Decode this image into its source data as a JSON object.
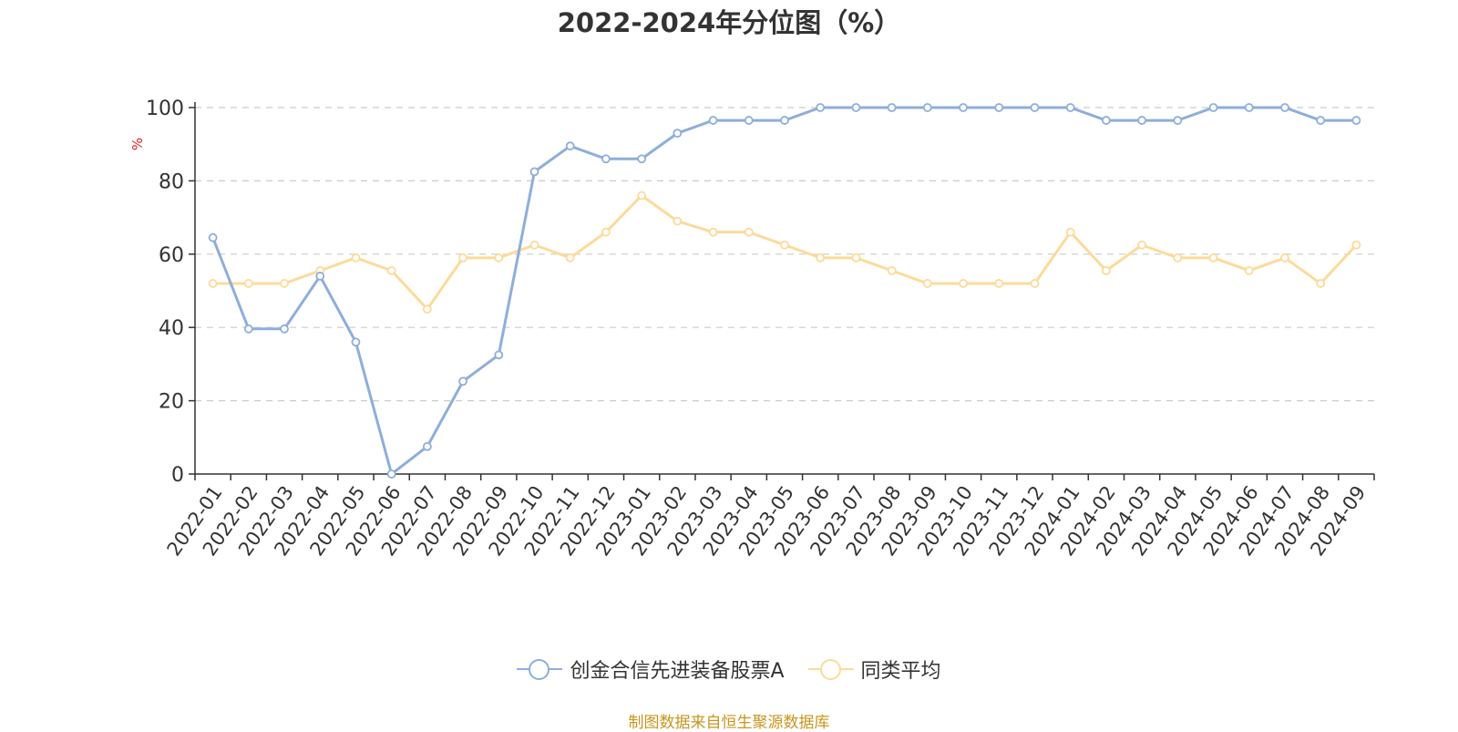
{
  "chart_data": {
    "type": "line",
    "title": "2022-2024年分位图（%）",
    "ylabel": "%",
    "xlabel": "",
    "ylim": [
      0,
      100
    ],
    "yticks": [
      0,
      20,
      40,
      60,
      80,
      100
    ],
    "grid": true,
    "legend_position": "bottom",
    "categories": [
      "2022-01",
      "2022-02",
      "2022-03",
      "2022-04",
      "2022-05",
      "2022-06",
      "2022-07",
      "2022-08",
      "2022-09",
      "2022-10",
      "2022-11",
      "2022-12",
      "2023-01",
      "2023-02",
      "2023-03",
      "2023-04",
      "2023-05",
      "2023-06",
      "2023-07",
      "2023-08",
      "2023-09",
      "2023-10",
      "2023-11",
      "2023-12",
      "2024-01",
      "2024-02",
      "2024-03",
      "2024-04",
      "2024-05",
      "2024-06",
      "2024-07",
      "2024-08",
      "2024-09"
    ],
    "series": [
      {
        "name": "创金合信先进装备股票A",
        "color": "#8eaedb",
        "values": [
          64.5,
          39.6,
          39.6,
          54.0,
          36.0,
          0.0,
          7.5,
          25.3,
          32.5,
          82.5,
          89.5,
          86.0,
          86.0,
          93.0,
          96.5,
          96.5,
          96.5,
          100,
          100,
          100,
          100,
          100,
          100,
          100,
          100,
          96.5,
          96.5,
          96.5,
          100,
          100,
          100,
          96.5,
          96.5
        ]
      },
      {
        "name": "同类平均",
        "color": "#fcdb9a",
        "values": [
          52.0,
          52.0,
          52.0,
          55.5,
          59.0,
          55.5,
          45.0,
          59.0,
          59.0,
          62.5,
          59.0,
          66.0,
          76.0,
          69.0,
          66.0,
          66.0,
          62.5,
          59.0,
          59.0,
          55.5,
          52.0,
          52.0,
          52.0,
          52.0,
          66.0,
          55.5,
          62.5,
          59.0,
          59.0,
          55.5,
          59.0,
          52.0,
          62.5
        ]
      }
    ]
  },
  "source_note": "制图数据来自恒生聚源数据库"
}
